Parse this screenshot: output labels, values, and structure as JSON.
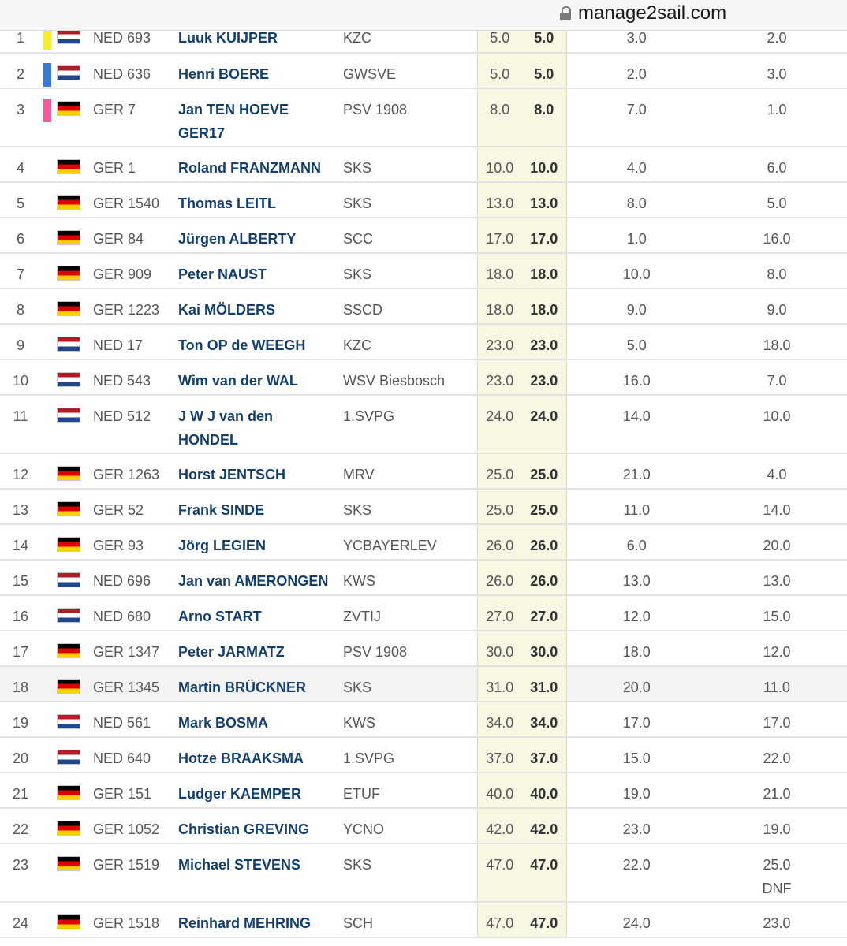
{
  "browser": {
    "url": "manage2sail.com"
  },
  "results": [
    {
      "rank": "1",
      "color": "#f4ef2a",
      "country": "NED",
      "sail": "NED 693",
      "name": "Luuk KUIJPER",
      "club": "KZC",
      "net": "5.0",
      "total": "5.0",
      "r1": "3.0",
      "r2": "2.0",
      "r2_code": ""
    },
    {
      "rank": "2",
      "color": "#3d76d6",
      "country": "NED",
      "sail": "NED 636",
      "name": "Henri BOERE",
      "club": "GWSVE",
      "net": "5.0",
      "total": "5.0",
      "r1": "2.0",
      "r2": "3.0",
      "r2_code": ""
    },
    {
      "rank": "3",
      "color": "#f25a9a",
      "country": "GER",
      "sail": "GER 7",
      "name": "Jan TEN HOEVE GER17",
      "club": "PSV 1908",
      "net": "8.0",
      "total": "8.0",
      "r1": "7.0",
      "r2": "1.0",
      "r2_code": ""
    },
    {
      "rank": "4",
      "color": "",
      "country": "GER",
      "sail": "GER 1",
      "name": "Roland FRANZMANN",
      "club": "SKS",
      "net": "10.0",
      "total": "10.0",
      "r1": "4.0",
      "r2": "6.0",
      "r2_code": ""
    },
    {
      "rank": "5",
      "color": "",
      "country": "GER",
      "sail": "GER 1540",
      "name": "Thomas LEITL",
      "club": "SKS",
      "net": "13.0",
      "total": "13.0",
      "r1": "8.0",
      "r2": "5.0",
      "r2_code": ""
    },
    {
      "rank": "6",
      "color": "",
      "country": "GER",
      "sail": "GER 84",
      "name": "Jürgen ALBERTY",
      "club": "SCC",
      "net": "17.0",
      "total": "17.0",
      "r1": "1.0",
      "r2": "16.0",
      "r2_code": ""
    },
    {
      "rank": "7",
      "color": "",
      "country": "GER",
      "sail": "GER 909",
      "name": "Peter NAUST",
      "club": "SKS",
      "net": "18.0",
      "total": "18.0",
      "r1": "10.0",
      "r2": "8.0",
      "r2_code": ""
    },
    {
      "rank": "8",
      "color": "",
      "country": "GER",
      "sail": "GER 1223",
      "name": "Kai MÖLDERS",
      "club": "SSCD",
      "net": "18.0",
      "total": "18.0",
      "r1": "9.0",
      "r2": "9.0",
      "r2_code": ""
    },
    {
      "rank": "9",
      "color": "",
      "country": "NED",
      "sail": "NED 17",
      "name": "Ton OP de WEEGH",
      "club": "KZC",
      "net": "23.0",
      "total": "23.0",
      "r1": "5.0",
      "r2": "18.0",
      "r2_code": ""
    },
    {
      "rank": "10",
      "color": "",
      "country": "NED",
      "sail": "NED 543",
      "name": "Wim van der WAL",
      "club": "WSV Biesbosch",
      "net": "23.0",
      "total": "23.0",
      "r1": "16.0",
      "r2": "7.0",
      "r2_code": ""
    },
    {
      "rank": "11",
      "color": "",
      "country": "NED",
      "sail": "NED 512",
      "name": "J W J van den HONDEL",
      "club": "1.SVPG",
      "net": "24.0",
      "total": "24.0",
      "r1": "14.0",
      "r2": "10.0",
      "r2_code": ""
    },
    {
      "rank": "12",
      "color": "",
      "country": "GER",
      "sail": "GER 1263",
      "name": "Horst JENTSCH",
      "club": "MRV",
      "net": "25.0",
      "total": "25.0",
      "r1": "21.0",
      "r2": "4.0",
      "r2_code": ""
    },
    {
      "rank": "13",
      "color": "",
      "country": "GER",
      "sail": "GER 52",
      "name": "Frank SINDE",
      "club": "SKS",
      "net": "25.0",
      "total": "25.0",
      "r1": "11.0",
      "r2": "14.0",
      "r2_code": ""
    },
    {
      "rank": "14",
      "color": "",
      "country": "GER",
      "sail": "GER 93",
      "name": "Jörg LEGIEN",
      "club": "YCBAYERLEV",
      "net": "26.0",
      "total": "26.0",
      "r1": "6.0",
      "r2": "20.0",
      "r2_code": ""
    },
    {
      "rank": "15",
      "color": "",
      "country": "NED",
      "sail": "NED 696",
      "name": "Jan van AMERONGEN",
      "club": "KWS",
      "net": "26.0",
      "total": "26.0",
      "r1": "13.0",
      "r2": "13.0",
      "r2_code": ""
    },
    {
      "rank": "16",
      "color": "",
      "country": "NED",
      "sail": "NED 680",
      "name": "Arno START",
      "club": "ZVTIJ",
      "net": "27.0",
      "total": "27.0",
      "r1": "12.0",
      "r2": "15.0",
      "r2_code": ""
    },
    {
      "rank": "17",
      "color": "",
      "country": "GER",
      "sail": "GER 1347",
      "name": "Peter JARMATZ",
      "club": "PSV 1908",
      "net": "30.0",
      "total": "30.0",
      "r1": "18.0",
      "r2": "12.0",
      "r2_code": ""
    },
    {
      "rank": "18",
      "color": "",
      "country": "GER",
      "sail": "GER 1345",
      "name": "Martin BRÜCKNER",
      "club": "SKS",
      "net": "31.0",
      "total": "31.0",
      "r1": "20.0",
      "r2": "11.0",
      "r2_code": ""
    },
    {
      "rank": "19",
      "color": "",
      "country": "NED",
      "sail": "NED 561",
      "name": "Mark BOSMA",
      "club": "KWS",
      "net": "34.0",
      "total": "34.0",
      "r1": "17.0",
      "r2": "17.0",
      "r2_code": ""
    },
    {
      "rank": "20",
      "color": "",
      "country": "NED",
      "sail": "NED 640",
      "name": "Hotze BRAAKSMA",
      "club": "1.SVPG",
      "net": "37.0",
      "total": "37.0",
      "r1": "15.0",
      "r2": "22.0",
      "r2_code": ""
    },
    {
      "rank": "21",
      "color": "",
      "country": "GER",
      "sail": "GER 151",
      "name": "Ludger KAEMPER",
      "club": "ETUF",
      "net": "40.0",
      "total": "40.0",
      "r1": "19.0",
      "r2": "21.0",
      "r2_code": ""
    },
    {
      "rank": "22",
      "color": "",
      "country": "GER",
      "sail": "GER 1052",
      "name": "Christian GREVING",
      "club": "YCNO",
      "net": "42.0",
      "total": "42.0",
      "r1": "23.0",
      "r2": "19.0",
      "r2_code": ""
    },
    {
      "rank": "23",
      "color": "",
      "country": "GER",
      "sail": "GER 1519",
      "name": "Michael STEVENS",
      "club": "SKS",
      "net": "47.0",
      "total": "47.0",
      "r1": "22.0",
      "r2": "25.0",
      "r2_code": "DNF"
    },
    {
      "rank": "24",
      "color": "",
      "country": "GER",
      "sail": "GER 1518",
      "name": "Reinhard MEHRING",
      "club": "SCH",
      "net": "47.0",
      "total": "47.0",
      "r1": "24.0",
      "r2": "23.0",
      "r2_code": ""
    }
  ]
}
